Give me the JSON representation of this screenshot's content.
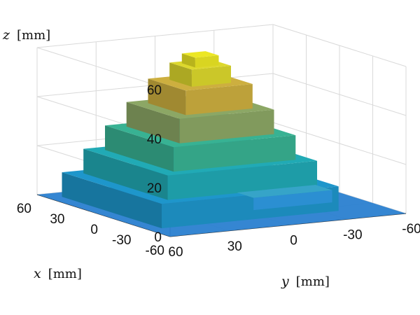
{
  "chart_data": {
    "type": "surface",
    "title": "",
    "axes": {
      "x": {
        "var": "x",
        "unit": "[mm]",
        "range": [
          -60,
          60
        ],
        "ticks": [
          60,
          30,
          0,
          -30,
          -60
        ],
        "tick_labels": [
          "60",
          "30",
          "0",
          "-30",
          "-60"
        ]
      },
      "y": {
        "var": "y",
        "unit": "[mm]",
        "range": [
          -60,
          60
        ],
        "ticks": [
          60,
          30,
          0,
          -30,
          -60
        ],
        "tick_labels": [
          "60",
          "30",
          "0",
          "-30",
          "-60"
        ]
      },
      "z": {
        "var": "z",
        "unit": "[mm]",
        "range": [
          0,
          60
        ],
        "ticks": [
          0,
          20,
          40,
          60
        ],
        "tick_labels": [
          "0",
          "20",
          "40",
          "60"
        ]
      }
    },
    "grid": true,
    "colormap": "parula",
    "surface": {
      "description_levels_z": [
        0,
        10,
        20,
        30,
        40,
        50,
        57
      ],
      "step_half_widths_mm": [
        45,
        38,
        31,
        24,
        17,
        10,
        6
      ],
      "peak_z": 57
    },
    "colors": {
      "base": "#2a7fd0",
      "low": "#20a8b0",
      "mid": "#3cb67a",
      "high": "#e0a040",
      "top": "#e8e022"
    }
  }
}
